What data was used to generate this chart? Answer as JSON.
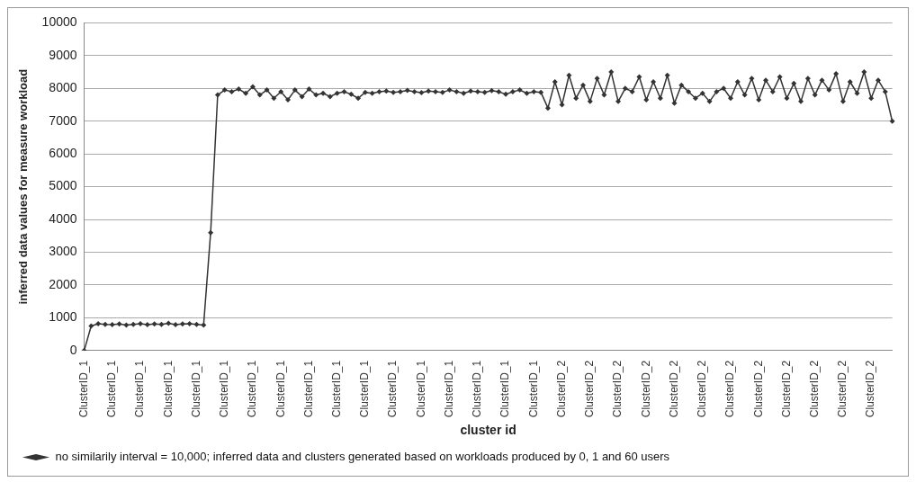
{
  "chart_data": {
    "type": "line",
    "xlabel": "cluster id",
    "ylabel": "inferred data values for measure workload",
    "categories": [
      "ClusterID_1",
      null,
      null,
      null,
      "ClusterID_1",
      null,
      null,
      null,
      "ClusterID_1",
      null,
      null,
      null,
      "ClusterID_1",
      null,
      null,
      null,
      "ClusterID_1",
      null,
      null,
      null,
      "ClusterID_1",
      null,
      null,
      null,
      "ClusterID_1",
      null,
      null,
      null,
      "ClusterID_1",
      null,
      null,
      null,
      "ClusterID_1",
      null,
      null,
      null,
      "ClusterID_1",
      null,
      null,
      null,
      "ClusterID_1",
      null,
      null,
      null,
      "ClusterID_1",
      null,
      null,
      null,
      "ClusterID_1",
      null,
      null,
      null,
      "ClusterID_1",
      null,
      null,
      null,
      "ClusterID_1",
      null,
      null,
      null,
      "ClusterID_1",
      null,
      null,
      null,
      "ClusterID_1",
      null,
      null,
      null,
      "ClusterID_2",
      null,
      null,
      null,
      "ClusterID_2",
      null,
      null,
      null,
      "ClusterID_2",
      null,
      null,
      null,
      "ClusterID_2",
      null,
      null,
      null,
      "ClusterID_2",
      null,
      null,
      null,
      "ClusterID_2",
      null,
      null,
      null,
      "ClusterID_2",
      null,
      null,
      null,
      "ClusterID_2",
      null,
      null,
      null,
      "ClusterID_2",
      null,
      null,
      null,
      "ClusterID_2",
      null,
      null,
      null,
      "ClusterID_2",
      null,
      null,
      null,
      "ClusterID_2",
      null,
      null,
      null
    ],
    "series": [
      {
        "name": "no similarily interval = 10,000; inferred data and clusters generated based on workloads produced by 0, 1 and 60 users",
        "color": "#333333",
        "values": [
          0,
          750,
          820,
          800,
          790,
          810,
          780,
          800,
          820,
          790,
          810,
          800,
          830,
          790,
          810,
          820,
          800,
          780,
          3600,
          7800,
          7950,
          7900,
          7980,
          7850,
          8050,
          7800,
          7950,
          7700,
          7900,
          7650,
          7950,
          7750,
          7980,
          7800,
          7850,
          7750,
          7850,
          7900,
          7820,
          7700,
          7880,
          7850,
          7900,
          7920,
          7880,
          7900,
          7940,
          7900,
          7870,
          7920,
          7900,
          7880,
          7950,
          7900,
          7850,
          7920,
          7900,
          7880,
          7930,
          7900,
          7820,
          7900,
          7950,
          7850,
          7900,
          7880,
          7400,
          8200,
          7500,
          8400,
          7700,
          8100,
          7600,
          8300,
          7800,
          8500,
          7600,
          8000,
          7900,
          8350,
          7650,
          8200,
          7700,
          8400,
          7550,
          8100,
          7900,
          7700,
          7850,
          7600,
          7900,
          8000,
          7700,
          8200,
          7800,
          8300,
          7650,
          8250,
          7900,
          8350,
          7700,
          8150,
          7600,
          8300,
          7800,
          8250,
          7950,
          8450,
          7600,
          8200,
          7850,
          8500,
          7700,
          8250,
          7900,
          7000
        ]
      }
    ],
    "ylim": [
      0,
      10000
    ],
    "yticks": [
      0,
      1000,
      2000,
      3000,
      4000,
      5000,
      6000,
      7000,
      8000,
      9000,
      10000
    ],
    "grid": "y",
    "legend": "bottom",
    "marker": "diamond",
    "line_style": "solid"
  }
}
